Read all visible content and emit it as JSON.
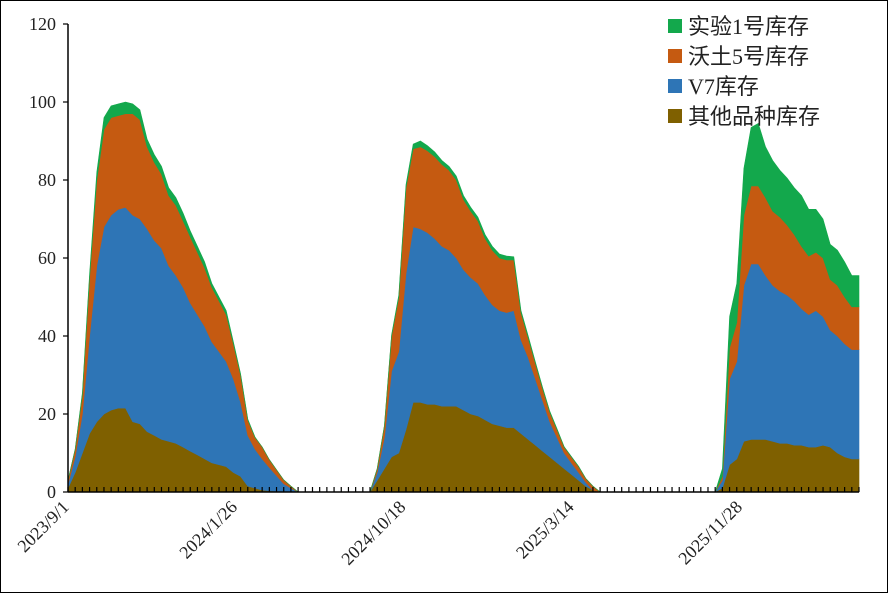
{
  "chart_data": {
    "type": "area",
    "stacked": true,
    "title": "",
    "xlabel": "",
    "ylabel": "",
    "ylim": [
      0,
      120
    ],
    "yticks": [
      0,
      20,
      40,
      60,
      80,
      100,
      120
    ],
    "xtick_labels": [
      "2023/9/1",
      "2024/1/26",
      "2024/10/18",
      "2025/3/14",
      "2025/11/28"
    ],
    "legend_position": "top-right",
    "x_count": 110,
    "segments": [
      {
        "name": "season-1",
        "x": [
          0,
          1,
          2,
          3,
          4,
          5,
          6,
          7,
          8,
          9,
          10,
          11,
          12,
          13,
          14,
          15,
          16,
          17,
          18,
          19,
          20,
          21,
          22,
          23,
          24,
          25,
          26,
          27,
          28,
          29,
          30,
          31,
          32
        ],
        "series": [
          {
            "name": "其他品种库存",
            "values": [
              1,
              5,
              10,
              15,
              18,
              20,
              21,
              21.5,
              21.5,
              18,
              17.5,
              15.5,
              14.5,
              13.5,
              13,
              12.5,
              11.5,
              10.5,
              9.5,
              8.5,
              7.5,
              7,
              6.5,
              5,
              4,
              1.5,
              1,
              0.5,
              0.3,
              0.2,
              0.1,
              0,
              0
            ]
          },
          {
            "name": "V7库存",
            "values": [
              1,
              4,
              10,
              25,
              40,
              48,
              50,
              51,
              51.5,
              53,
              52.5,
              52,
              50,
              49,
              45,
              43,
              41,
              38,
              36,
              34,
              31,
              29,
              27,
              24,
              19,
              13,
              10,
              8,
              6,
              4,
              2,
              1,
              0
            ]
          },
          {
            "name": "沃土5号库存",
            "values": [
              1,
              2,
              5,
              15,
              22,
              25,
              25,
              24,
              24,
              26,
              25.5,
              21,
              20,
              19,
              18,
              18,
              17,
              17,
              16,
              15,
              14,
              13,
              12,
              9,
              7,
              4,
              3,
              3,
              2,
              1.5,
              1,
              0.5,
              0
            ]
          },
          {
            "name": "实验1号库存",
            "values": [
              0,
              0,
              0.5,
              1,
              2,
              3,
              3,
              3,
              3,
              2.5,
              2.5,
              2,
              2,
              2,
              2,
              2,
              2,
              1.5,
              1.5,
              1.5,
              1,
              1,
              1,
              0.5,
              0.3,
              0.2,
              0.1,
              0,
              0,
              0,
              0,
              0,
              0
            ]
          }
        ]
      },
      {
        "name": "season-2",
        "x": [
          42,
          43,
          44,
          45,
          46,
          47,
          48,
          49,
          50,
          51,
          52,
          53,
          54,
          55,
          56,
          57,
          58,
          59,
          60,
          61,
          62,
          63,
          64,
          65,
          66,
          67,
          68,
          69,
          70,
          71,
          72,
          73,
          74,
          75,
          76,
          77,
          78,
          79,
          80,
          81,
          82
        ],
        "series": [
          {
            "name": "其他品种库存",
            "values": [
              0,
              3,
              6,
              9,
              10,
              16,
              23,
              23,
              22.5,
              22.5,
              22,
              22,
              22,
              21,
              20,
              19.5,
              18.5,
              17.5,
              17,
              16.5,
              16.5,
              15,
              13.5,
              12,
              10.5,
              9,
              7.5,
              6,
              4.5,
              3,
              1.5,
              0.5,
              0,
              0,
              0,
              0,
              0,
              0,
              0,
              0,
              0
            ]
          },
          {
            "name": "V7库存",
            "values": [
              0,
              2,
              8,
              22,
              26,
              40,
              45,
              44.5,
              44,
              42.5,
              41,
              40,
              38,
              36,
              35,
              34,
              32,
              30.5,
              29.5,
              29.5,
              30,
              24,
              21,
              17,
              13,
              9,
              6.5,
              4,
              3,
              2,
              1,
              0,
              0,
              0,
              0,
              0,
              0,
              0,
              0,
              0,
              0
            ]
          },
          {
            "name": "沃土5号库存",
            "values": [
              0,
              1,
              3,
              9,
              14,
              22,
              20,
              21,
              21,
              21,
              21,
              20.5,
              20,
              18,
              17,
              16,
              14.5,
              14,
              13.5,
              13.5,
              13,
              7,
              5,
              4,
              3,
              2.5,
              2,
              1.5,
              1.5,
              1.5,
              1,
              1,
              0,
              0,
              0,
              0,
              0,
              0,
              0,
              0,
              0
            ]
          },
          {
            "name": "实验1号库存",
            "values": [
              0,
              0,
              0,
              0.3,
              0.5,
              0.8,
              1.2,
              1.5,
              1.3,
              1.2,
              1,
              1,
              1,
              1,
              1,
              1,
              1,
              1,
              1,
              1,
              0.8,
              0.5,
              0.5,
              0.3,
              0.3,
              0.2,
              0.2,
              0.1,
              0.1,
              0.1,
              0,
              0,
              0,
              0,
              0,
              0,
              0,
              0,
              0,
              0,
              0
            ]
          }
        ]
      },
      {
        "name": "season-3",
        "x": [
          90,
          91,
          92,
          93,
          94,
          95,
          96,
          97,
          98,
          99,
          100,
          101,
          102,
          103,
          104,
          105,
          106,
          107,
          108,
          109,
          110
        ],
        "series": [
          {
            "name": "其他品种库存",
            "values": [
              0,
              1,
              7,
              8.5,
              13,
              13.5,
              13.5,
              13.5,
              13,
              12.5,
              12.5,
              12,
              12,
              11.5,
              11.5,
              12,
              11.5,
              10,
              9,
              8.5,
              8.5
            ]
          },
          {
            "name": "V7库存",
            "values": [
              0,
              2,
              22,
              25,
              40,
              45,
              45,
              42,
              40,
              39,
              38,
              37,
              35,
              34,
              35,
              33,
              30,
              30,
              29,
              28,
              28
            ]
          },
          {
            "name": "沃土5号库存",
            "values": [
              0,
              1,
              8,
              10,
              18,
              20,
              20,
              20,
              19,
              19,
              18,
              17,
              16,
              15,
              15,
              15,
              13,
              13,
              12,
              11,
              11
            ]
          },
          {
            "name": "实验1号库存",
            "values": [
              0,
              2,
              8,
              10,
              12,
              15,
              16,
              13,
              13,
              12,
              12,
              12,
              13,
              12,
              11,
              10,
              9,
              9,
              9,
              8,
              8
            ]
          }
        ]
      }
    ]
  },
  "legend": {
    "items": [
      {
        "label": "实验1号库存",
        "color": "#13a84c"
      },
      {
        "label": "沃土5号库存",
        "color": "#c55a11"
      },
      {
        "label": "V7库存",
        "color": "#2e75b6"
      },
      {
        "label": "其他品种库存",
        "color": "#7f6000"
      }
    ]
  }
}
